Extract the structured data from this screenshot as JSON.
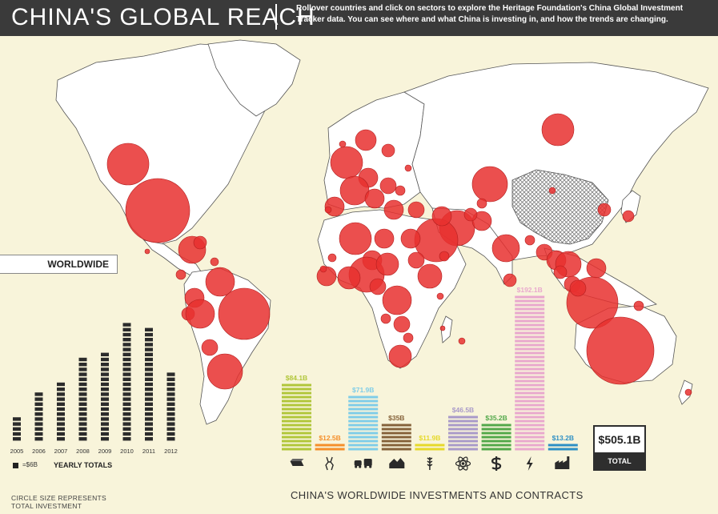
{
  "header": {
    "title": "CHINA'S GLOBAL REACH",
    "subtitle": "Rollover countries and click on sectors to explore the Heritage Foundation's China Global Investment Tracker data. You can see where and what China is investing in, and how the trends are changing."
  },
  "worldwide_label": "WORLDWIDE",
  "legend": {
    "unit": "=$6B",
    "yearly_totals": "YEARLY TOTALS",
    "circle_note_line1": "CIRCLE SIZE REPRESENTS",
    "circle_note_line2": "TOTAL INVESTMENT"
  },
  "bottom_title": "CHINA'S WORLDWIDE INVESTMENTS AND CONTRACTS",
  "total": {
    "value": "$505.1B",
    "label": "TOTAL"
  },
  "colors": {
    "bubble": "#e8302f",
    "land": "#ffffff",
    "border": "#555555",
    "china_hatch": "#7d7d7d",
    "background": "#f8f4da",
    "header": "#3a3a3a"
  },
  "chart_data": [
    {
      "type": "bar",
      "categories": [
        "2005",
        "2006",
        "2007",
        "2008",
        "2009",
        "2010",
        "2011",
        "2012"
      ],
      "values": [
        30,
        60,
        72,
        102,
        108,
        144,
        138,
        84
      ],
      "unit_block_value": 6,
      "ylim": [
        0,
        150
      ]
    },
    {
      "type": "bar",
      "categories": [
        "energy",
        "metals",
        "transport",
        "real-estate",
        "agriculture",
        "technology",
        "finance",
        "power",
        "chemicals"
      ],
      "icons": [
        "oil-barrel-icon",
        "metals-icon",
        "transport-icon",
        "real-estate-icon",
        "wheat-icon",
        "atom-icon",
        "dollar-icon",
        "lightning-icon",
        "factory-icon"
      ],
      "labels": [
        "$84.1B",
        "$12.5B",
        "$71.9B",
        "$35B",
        "$11.9B",
        "$46.5B",
        "$35.2B",
        "$192.1B",
        "$13.2B"
      ],
      "values": [
        84.1,
        12.5,
        71.9,
        35,
        11.9,
        46.5,
        35.2,
        192.1,
        13.2
      ],
      "colors": [
        "#b1c63a",
        "#f58f2a",
        "#7fcde8",
        "#85623a",
        "#e6d92a",
        "#a99ac9",
        "#53a84a",
        "#e9a8cd",
        "#2d8fc4"
      ]
    }
  ]
}
